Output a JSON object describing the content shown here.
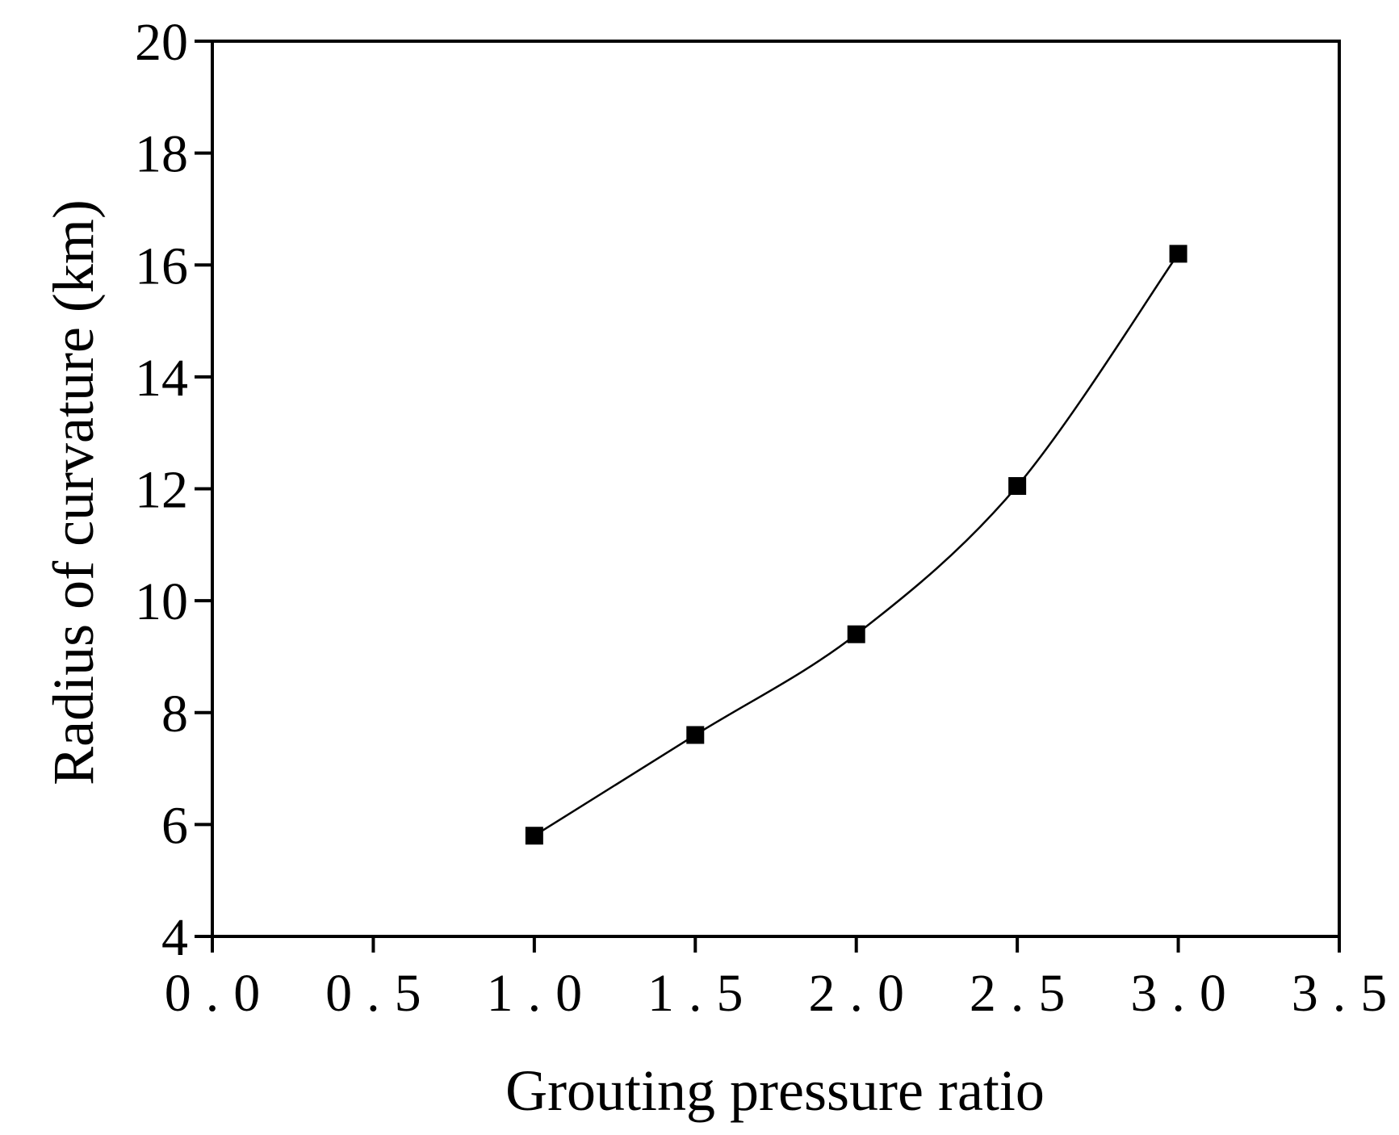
{
  "chart_data": {
    "type": "line",
    "title": "",
    "xlabel": "Grouting pressure ratio",
    "ylabel": "Radius of curvature (km)",
    "xlim": [
      0.0,
      3.5
    ],
    "ylim": [
      4,
      20
    ],
    "x_ticks": [
      0.0,
      0.5,
      1.0,
      1.5,
      2.0,
      2.5,
      3.0,
      3.5
    ],
    "x_tick_labels": [
      "0.0",
      "0.5",
      "1.0",
      "1.5",
      "2.0",
      "2.5",
      "3.0",
      "3.5"
    ],
    "y_ticks": [
      4,
      6,
      8,
      10,
      12,
      14,
      16,
      18,
      20
    ],
    "y_tick_labels": [
      "4",
      "6",
      "8",
      "10",
      "12",
      "14",
      "16",
      "18",
      "20"
    ],
    "grid": false,
    "legend": "none",
    "series": [
      {
        "name": "Radius of curvature",
        "marker": "square",
        "line": "smooth",
        "color": "#000000",
        "x": [
          1.0,
          1.5,
          2.0,
          2.5,
          3.0
        ],
        "y": [
          5.8,
          7.6,
          9.4,
          12.05,
          16.2
        ]
      }
    ]
  }
}
